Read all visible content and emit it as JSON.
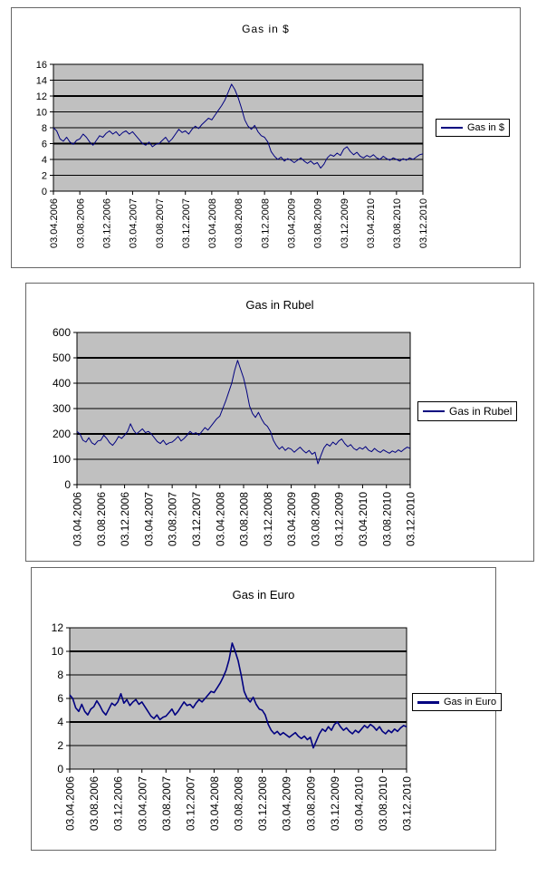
{
  "chart_data": [
    {
      "type": "line",
      "title": "Gas in $",
      "legend_position": "right",
      "plot_bg": "#c0c0c0",
      "gridline_color": "#000000",
      "ylim": [
        0,
        16
      ],
      "yticks": [
        0,
        2,
        4,
        6,
        8,
        10,
        12,
        14,
        16
      ],
      "bold_gridlines": [
        6,
        12
      ],
      "x_tick_labels": [
        "03.04.2006",
        "03.08.2006",
        "03.12.2006",
        "03.04.2007",
        "03.08.2007",
        "03.12.2007",
        "03.04.2008",
        "03.08.2008",
        "03.12.2008",
        "03.04.2009",
        "03.08.2009",
        "03.12.2009",
        "03.04.2010",
        "03.08.2010",
        "03.12.2010"
      ],
      "series": [
        {
          "name": "Gas in $",
          "color": "#000080",
          "values": [
            8.0,
            7.6,
            6.6,
            6.3,
            6.8,
            6.2,
            5.9,
            6.4,
            6.6,
            7.2,
            6.8,
            6.2,
            5.8,
            6.4,
            7.0,
            6.8,
            7.3,
            7.6,
            7.2,
            7.5,
            7.0,
            7.4,
            7.6,
            7.2,
            7.5,
            7.0,
            6.5,
            6.0,
            5.8,
            6.2,
            5.6,
            5.9,
            6.0,
            6.4,
            6.8,
            6.2,
            6.6,
            7.2,
            7.8,
            7.4,
            7.6,
            7.2,
            7.8,
            8.2,
            7.9,
            8.4,
            8.8,
            9.2,
            9.0,
            9.6,
            10.2,
            10.8,
            11.5,
            12.5,
            13.5,
            12.8,
            11.8,
            10.5,
            9.0,
            8.2,
            7.8,
            8.3,
            7.5,
            7.0,
            6.8,
            6.2,
            5.0,
            4.4,
            4.0,
            4.3,
            3.8,
            4.1,
            3.9,
            3.6,
            3.9,
            4.2,
            3.8,
            3.5,
            3.8,
            3.4,
            3.6,
            2.9,
            3.4,
            4.2,
            4.6,
            4.4,
            4.8,
            4.5,
            5.3,
            5.6,
            5.0,
            4.6,
            4.9,
            4.4,
            4.2,
            4.5,
            4.3,
            4.6,
            4.2,
            4.0,
            4.4,
            4.1,
            3.9,
            4.2,
            4.0,
            3.8,
            4.1,
            3.9,
            4.2,
            4.0,
            4.3,
            4.6,
            4.7
          ]
        }
      ]
    },
    {
      "type": "line",
      "title": "Gas in Rubel",
      "legend_position": "right",
      "plot_bg": "#c0c0c0",
      "gridline_color": "#000000",
      "ylim": [
        0,
        600
      ],
      "yticks": [
        0,
        100,
        200,
        300,
        400,
        500,
        600
      ],
      "bold_gridlines": [
        200,
        500
      ],
      "x_tick_labels": [
        "03.04.2006",
        "03.08.2006",
        "03.12.2006",
        "03.04.2007",
        "03.08.2007",
        "03.12.2007",
        "03.04.2008",
        "03.08.2008",
        "03.12.2008",
        "03.04.2009",
        "03.08.2009",
        "03.12.2009",
        "03.04.2010",
        "03.08.2010",
        "03.12.2010"
      ],
      "series": [
        {
          "name": "Gas in Rubel",
          "color": "#000080",
          "values": [
            210,
            200,
            175,
            168,
            185,
            165,
            158,
            172,
            175,
            195,
            182,
            165,
            155,
            170,
            190,
            182,
            195,
            210,
            240,
            215,
            200,
            210,
            220,
            205,
            210,
            200,
            185,
            170,
            162,
            175,
            158,
            165,
            168,
            178,
            190,
            172,
            182,
            195,
            210,
            200,
            205,
            195,
            210,
            225,
            215,
            230,
            245,
            260,
            270,
            300,
            330,
            365,
            400,
            450,
            490,
            455,
            420,
            370,
            310,
            280,
            265,
            285,
            260,
            240,
            230,
            210,
            175,
            155,
            140,
            150,
            135,
            145,
            140,
            128,
            138,
            148,
            135,
            125,
            135,
            120,
            128,
            82,
            115,
            145,
            160,
            152,
            168,
            158,
            172,
            180,
            162,
            150,
            158,
            143,
            136,
            146,
            140,
            150,
            136,
            130,
            143,
            133,
            127,
            137,
            130,
            124,
            133,
            127,
            137,
            130,
            140,
            148,
            143
          ]
        }
      ]
    },
    {
      "type": "line",
      "title": "Gas in Euro",
      "legend_position": "right",
      "plot_bg": "#c0c0c0",
      "gridline_color": "#000000",
      "ylim": [
        0,
        12
      ],
      "yticks": [
        0,
        2,
        4,
        6,
        8,
        10,
        12
      ],
      "bold_gridlines": [
        4,
        10
      ],
      "x_tick_labels": [
        "03.04.2006",
        "03.08.2006",
        "03.12.2006",
        "03.04.2007",
        "03.08.2007",
        "03.12.2007",
        "03.04.2008",
        "03.08.2008",
        "03.12.2008",
        "03.04.2009",
        "03.08.2009",
        "03.12.2009",
        "03.04.2010",
        "03.08.2010",
        "03.12.2010"
      ],
      "series": [
        {
          "name": "Gas in Euro",
          "color": "#000080",
          "values": [
            6.3,
            6.0,
            5.2,
            4.9,
            5.5,
            4.9,
            4.6,
            5.1,
            5.3,
            5.8,
            5.4,
            4.9,
            4.6,
            5.1,
            5.6,
            5.4,
            5.7,
            6.4,
            5.6,
            5.9,
            5.4,
            5.7,
            5.9,
            5.5,
            5.7,
            5.3,
            4.9,
            4.5,
            4.3,
            4.6,
            4.2,
            4.4,
            4.5,
            4.8,
            5.1,
            4.6,
            4.9,
            5.3,
            5.7,
            5.4,
            5.5,
            5.2,
            5.6,
            5.9,
            5.7,
            6.0,
            6.3,
            6.6,
            6.5,
            6.9,
            7.3,
            7.8,
            8.4,
            9.3,
            10.7,
            10.0,
            9.2,
            8.0,
            6.6,
            6.0,
            5.7,
            6.1,
            5.5,
            5.1,
            5.0,
            4.6,
            3.8,
            3.3,
            3.0,
            3.2,
            2.9,
            3.1,
            2.9,
            2.7,
            2.9,
            3.1,
            2.8,
            2.6,
            2.8,
            2.5,
            2.7,
            1.8,
            2.4,
            3.0,
            3.4,
            3.2,
            3.6,
            3.3,
            3.8,
            4.0,
            3.6,
            3.3,
            3.5,
            3.2,
            3.0,
            3.3,
            3.1,
            3.4,
            3.7,
            3.5,
            3.8,
            3.6,
            3.3,
            3.6,
            3.2,
            3.0,
            3.3,
            3.1,
            3.4,
            3.2,
            3.5,
            3.7,
            3.6
          ]
        }
      ]
    }
  ]
}
